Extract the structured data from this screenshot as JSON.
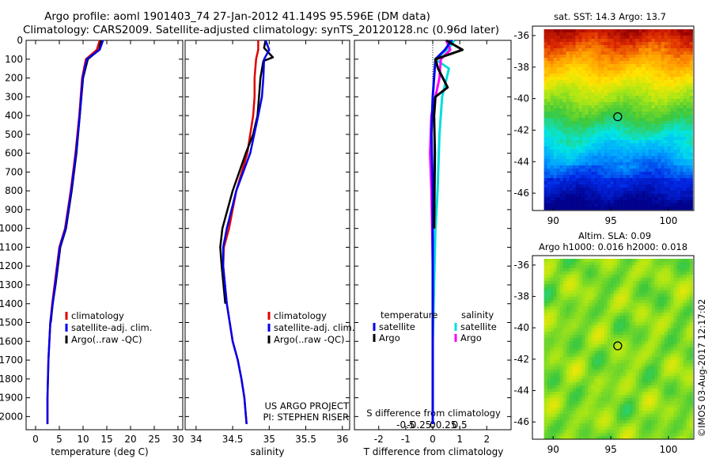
{
  "header": {
    "line1": "Argo profile: aoml 1901403_74 27-Jan-2012 41.149S 95.596E (DM data)",
    "line2": "Climatology: CARS2009. Satellite-adjusted climatology: synTS_20120128.nc (0.96d later)"
  },
  "colors": {
    "climatology": "#e00000",
    "satellite": "#0000ee",
    "argo": "#000000",
    "sat_salinity": "#00dddd",
    "argo_salinity": "#ff00ff"
  },
  "chart_data": [
    {
      "type": "line",
      "xlabel": "temperature (deg C)",
      "ylabel": "",
      "xlim": [
        -2,
        31
      ],
      "ylim": [
        2070,
        0
      ],
      "xticks": [
        0,
        5,
        10,
        15,
        20,
        25,
        30
      ],
      "yticks": [
        0,
        100,
        200,
        300,
        400,
        500,
        600,
        700,
        800,
        900,
        1000,
        1100,
        1200,
        1300,
        1400,
        1500,
        1600,
        1700,
        1800,
        1900,
        2000
      ],
      "legend": [
        "climatology",
        "satellite-adj. clim.",
        "Argo(..raw -QC)"
      ],
      "series": [
        {
          "name": "climatology",
          "x": [
            13.5,
            12.9,
            10.6,
            9.8,
            9.2,
            8.4,
            7.4,
            6.2,
            5.0,
            4.0,
            3.5,
            3.1,
            2.9,
            2.7,
            2.6,
            2.5,
            2.5
          ],
          "y": [
            0,
            50,
            100,
            200,
            400,
            600,
            800,
            1000,
            1100,
            1300,
            1400,
            1500,
            1600,
            1700,
            1800,
            1900,
            2040
          ]
        },
        {
          "name": "satellite-adj. clim.",
          "x": [
            14.2,
            13.5,
            10.8,
            9.9,
            9.3,
            8.5,
            7.5,
            6.3,
            5.1,
            4.1,
            3.6,
            3.1,
            2.9,
            2.7,
            2.6,
            2.5,
            2.5
          ],
          "y": [
            0,
            50,
            100,
            200,
            400,
            600,
            800,
            1000,
            1100,
            1300,
            1400,
            1500,
            1600,
            1700,
            1800,
            1900,
            2040
          ]
        },
        {
          "name": "Argo(..raw -QC)",
          "x": [
            13.8,
            13.4,
            11.0,
            10.0,
            9.3,
            8.6,
            7.6,
            6.4,
            5.2,
            4.2,
            3.6,
            3.2
          ],
          "y": [
            0,
            50,
            100,
            200,
            400,
            600,
            800,
            1000,
            1100,
            1300,
            1400,
            1500
          ]
        }
      ],
      "annotation": ""
    },
    {
      "type": "line",
      "xlabel": "salinity",
      "ylabel": "",
      "xlim": [
        33.85,
        36.1
      ],
      "ylim": [
        2070,
        0
      ],
      "xticks": [
        34,
        34.5,
        35,
        35.5,
        36
      ],
      "xticklabels": [
        "34",
        "34.5",
        "35",
        "35.5",
        "36"
      ],
      "legend": [
        "climatology",
        "satellite-adj. clim.",
        "Argo(..raw -QC)"
      ],
      "series": [
        {
          "name": "climatology",
          "x": [
            34.85,
            34.85,
            34.82,
            34.8,
            34.8,
            34.78,
            34.7,
            34.55,
            34.45,
            34.38,
            34.37,
            34.42,
            34.5,
            34.57,
            34.62,
            34.66,
            34.69
          ],
          "y": [
            0,
            50,
            100,
            200,
            300,
            400,
            600,
            800,
            1000,
            1100,
            1200,
            1400,
            1600,
            1700,
            1800,
            1900,
            2040
          ]
        },
        {
          "name": "satellite-adj. clim.",
          "x": [
            34.95,
            35.0,
            34.93,
            34.92,
            34.9,
            34.85,
            34.74,
            34.55,
            34.42,
            34.37,
            34.37,
            34.42,
            34.5,
            34.57,
            34.62,
            34.66,
            34.69
          ],
          "y": [
            0,
            50,
            100,
            200,
            300,
            400,
            600,
            800,
            1000,
            1100,
            1200,
            1400,
            1600,
            1700,
            1800,
            1900,
            2040
          ]
        },
        {
          "name": "Argo(..raw -QC)",
          "x": [
            34.95,
            34.93,
            35.05,
            34.92,
            34.88,
            34.86,
            34.84,
            34.78,
            34.68,
            34.5,
            34.36,
            34.33,
            34.35,
            34.4
          ],
          "y": [
            0,
            40,
            90,
            110,
            200,
            300,
            400,
            500,
            600,
            800,
            1000,
            1100,
            1200,
            1400
          ]
        }
      ],
      "annotation_lines": [
        "US ARGO PROJECT",
        "PI: STEPHEN RISER"
      ]
    },
    {
      "type": "line",
      "xlabel": "T difference from climatology",
      "xlabel_top": "S difference from climatology",
      "xlim": [
        -2.9,
        2.9
      ],
      "ylim": [
        2070,
        0
      ],
      "xticks": [
        -2,
        -1,
        0,
        1,
        2
      ],
      "secondary_xticks": [
        -0.5,
        -0.25,
        0,
        0.25,
        0.5
      ],
      "secondary_xticklabels": [
        "-0.5",
        "-0.25",
        "0",
        "0.25",
        "0.5"
      ],
      "legend_titles": [
        "temperature",
        "salinity"
      ],
      "legend": [
        "satellite",
        "Argo",
        "satellite",
        "Argo"
      ],
      "series": [
        {
          "name": "satellite",
          "group": "temperature",
          "x": [
            0.7,
            0.45,
            0.1,
            0.05,
            0,
            -0.05,
            0,
            0,
            0,
            0,
            0,
            0
          ],
          "y": [
            0,
            50,
            100,
            200,
            300,
            500,
            800,
            1000,
            1300,
            1600,
            1800,
            2040
          ]
        },
        {
          "name": "Argo",
          "group": "temperature",
          "x": [
            0.5,
            1.1,
            0.1,
            0.2,
            0.55,
            0.1,
            0.05,
            0.08,
            0.05
          ],
          "y": [
            0,
            50,
            100,
            150,
            250,
            300,
            400,
            600,
            1000
          ]
        },
        {
          "name": "satellite",
          "group": "salinity",
          "x": [
            0.8,
            0.6,
            0.1,
            0.6,
            0.35,
            0.25,
            0.18,
            0.1,
            0.05,
            0,
            0,
            0
          ],
          "y": [
            0,
            40,
            100,
            150,
            300,
            500,
            800,
            1000,
            1300,
            1600,
            1800,
            2040
          ]
        },
        {
          "name": "Argo",
          "group": "salinity",
          "x": [
            0.5,
            0.65,
            0.3,
            0.25,
            -0.05,
            -0.1,
            -0.05,
            -0.02,
            0
          ],
          "y": [
            0,
            50,
            100,
            200,
            400,
            600,
            800,
            1000,
            1200
          ]
        }
      ]
    },
    {
      "type": "heatmap",
      "title": "sat. SST: 14.3 Argo: 13.7",
      "xlim": [
        88.2,
        102.2
      ],
      "ylim": [
        -47.1,
        -35.4
      ],
      "xticks": [
        90,
        95,
        100
      ],
      "yticks": [
        -36,
        -38,
        -40,
        -42,
        -44,
        -46
      ],
      "marker": {
        "x": 95.6,
        "y": -41.15
      }
    },
    {
      "type": "heatmap",
      "title_lines": [
        "Altim. SLA: 0.09",
        "Argo h1000: 0.016 h2000: 0.018"
      ],
      "xlim": [
        88.2,
        102.2
      ],
      "ylim": [
        -47.1,
        -35.4
      ],
      "xticks": [
        90,
        95,
        100
      ],
      "yticks": [
        -36,
        -38,
        -40,
        -42,
        -44,
        -46
      ],
      "marker": {
        "x": 95.6,
        "y": -41.15
      }
    }
  ],
  "watermark": "©IMOS 03-Aug-2017 12:17:02"
}
